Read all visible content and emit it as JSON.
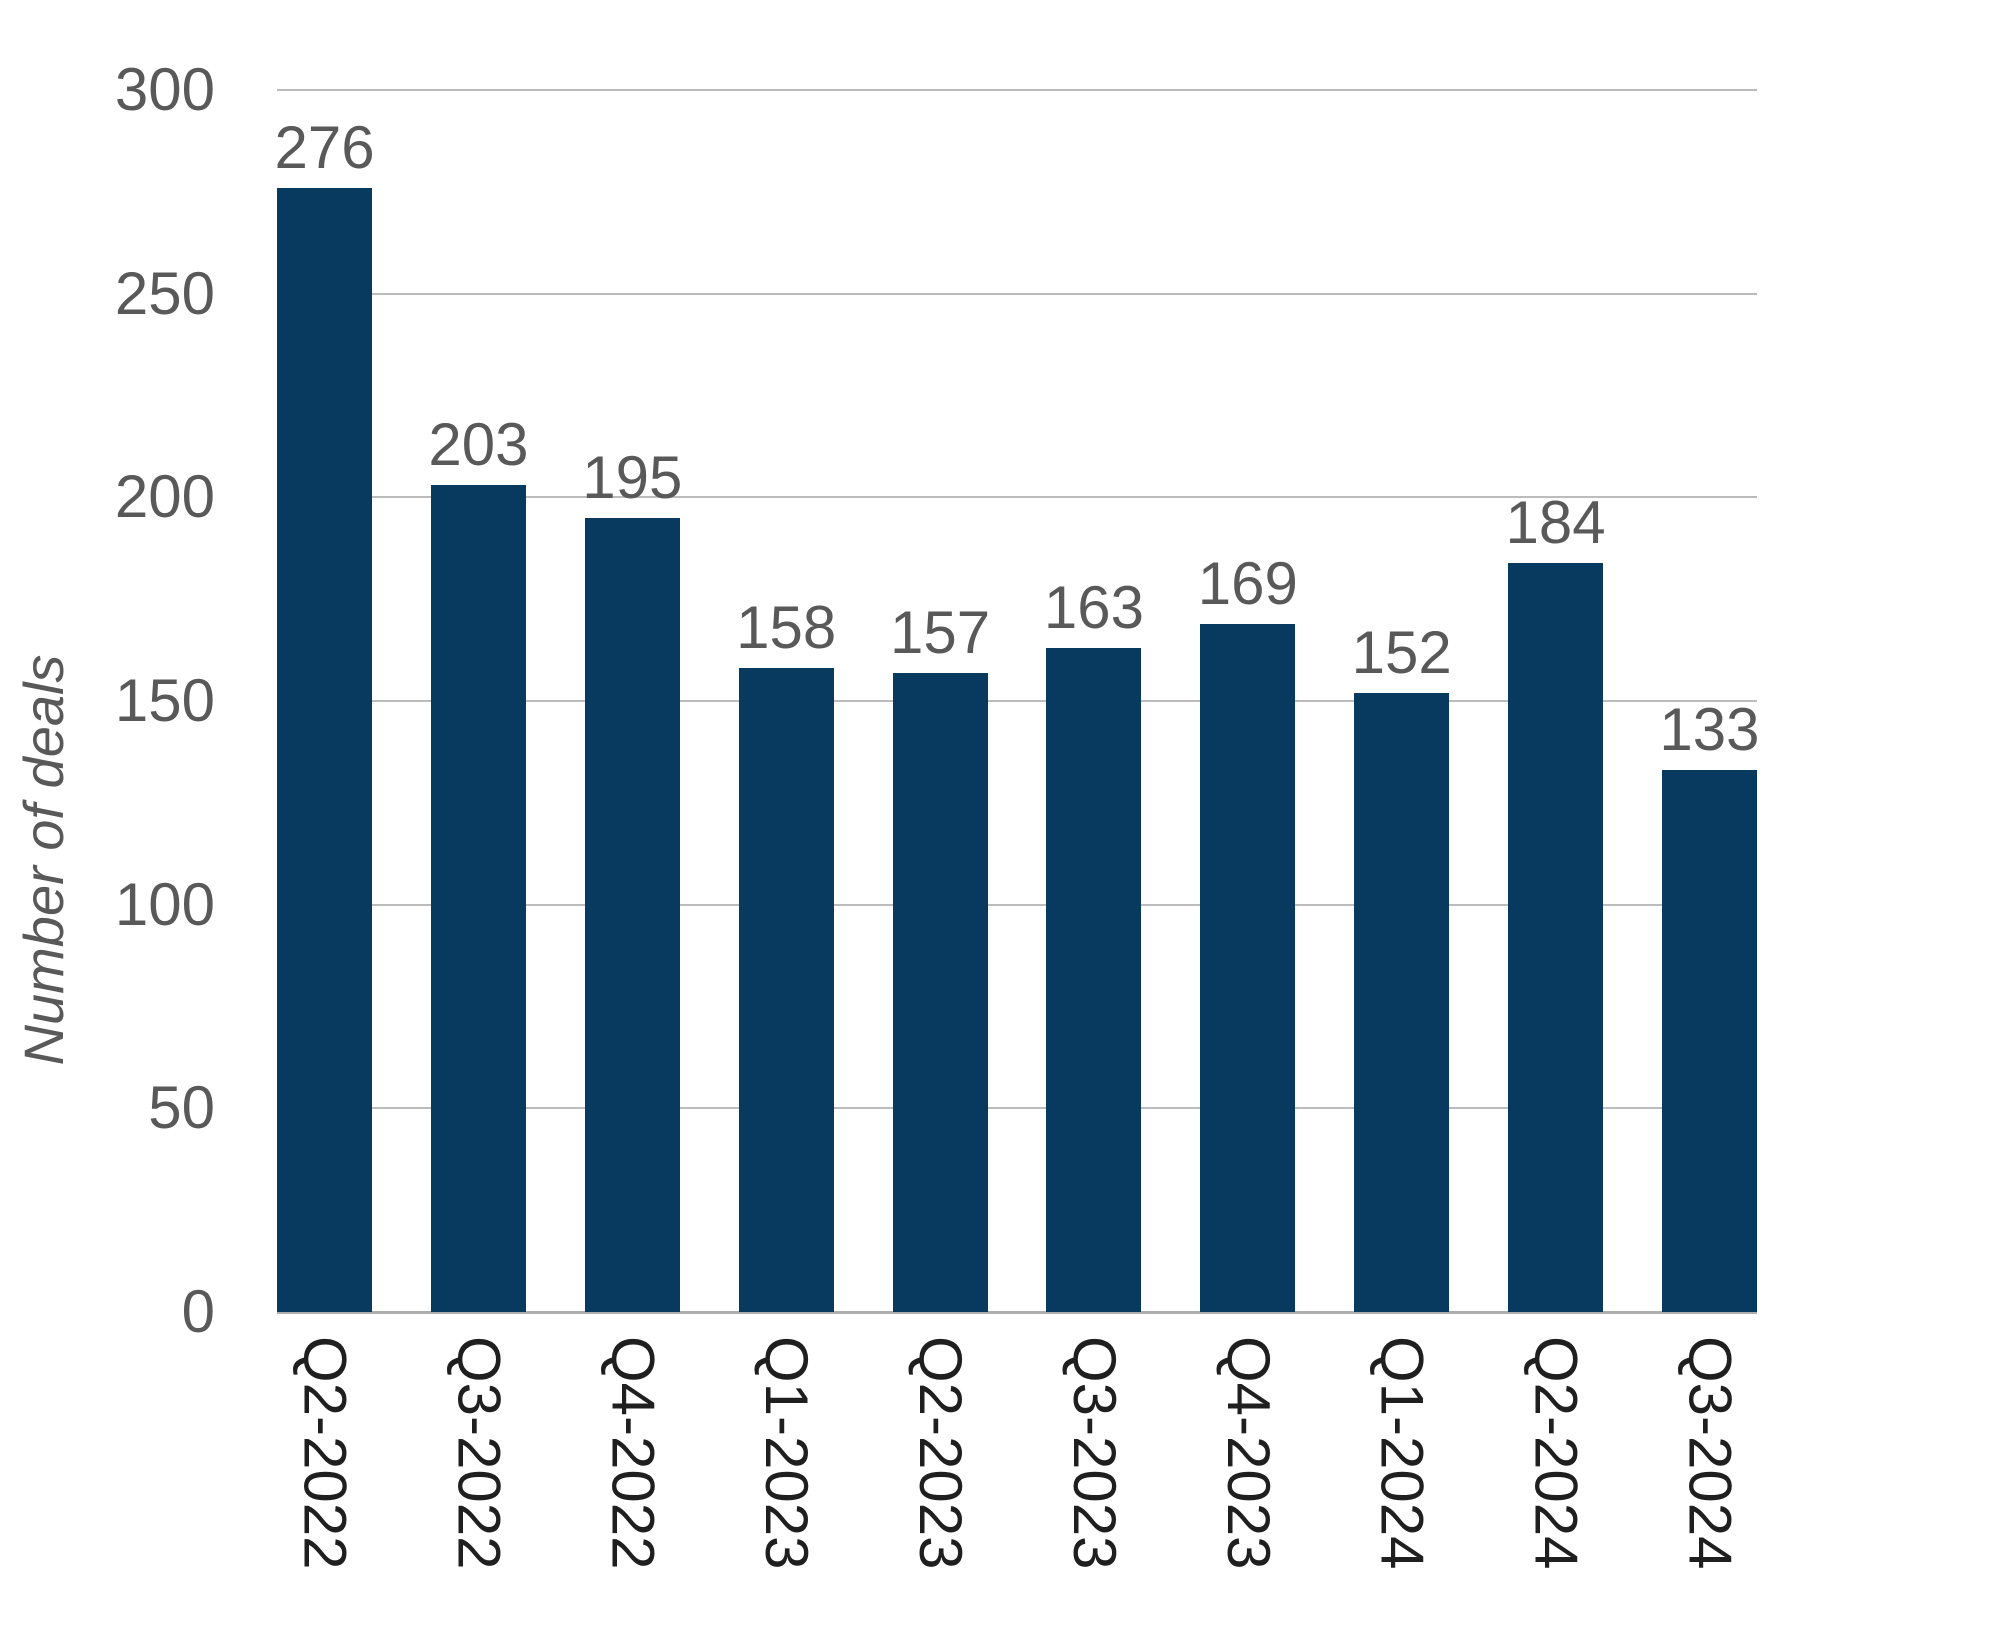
{
  "chart_data": {
    "type": "bar",
    "categories": [
      "Q2-2022",
      "Q3-2022",
      "Q4-2022",
      "Q1-2023",
      "Q2-2023",
      "Q3-2023",
      "Q4-2023",
      "Q1-2024",
      "Q2-2024",
      "Q3-2024"
    ],
    "values": [
      276,
      203,
      195,
      158,
      157,
      163,
      169,
      152,
      184,
      133
    ],
    "title": "",
    "xlabel": "",
    "ylabel": "Number of deals",
    "ylim": [
      0,
      300
    ],
    "yticks": [
      0,
      50,
      100,
      150,
      200,
      250,
      300
    ],
    "grid": true,
    "legend": false,
    "colors": {
      "bar": "#083a5f",
      "value_label": "#595959",
      "y_tick_label": "#595959",
      "y_axis_title": "#595959",
      "x_tick_label": "#1f1f1f",
      "gridline": "#bcbcbc",
      "baseline": "#aeaeae",
      "background": "#ffffff"
    }
  }
}
